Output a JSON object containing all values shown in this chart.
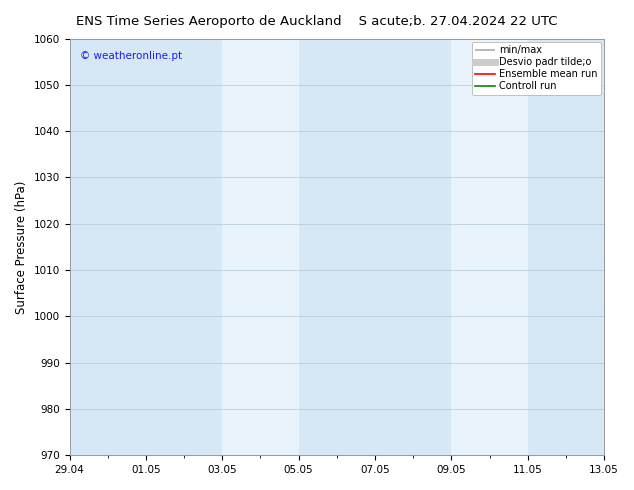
{
  "title_left": "ENS Time Series Aeroporto de Auckland",
  "title_right": "S acute;b. 27.04.2024 22 UTC",
  "ylabel": "Surface Pressure (hPa)",
  "ylim": [
    970,
    1060
  ],
  "yticks": [
    970,
    980,
    990,
    1000,
    1010,
    1020,
    1030,
    1040,
    1050,
    1060
  ],
  "xtick_labels": [
    "29.04",
    "01.05",
    "03.05",
    "05.05",
    "07.05",
    "09.05",
    "11.05",
    "13.05"
  ],
  "xtick_positions_days": [
    0,
    2,
    4,
    6,
    8,
    10,
    12,
    14
  ],
  "white_bands": [
    {
      "start_day": 4,
      "end_day": 6
    },
    {
      "start_day": 10,
      "end_day": 12
    }
  ],
  "plot_bg_color": "#d6e8f5",
  "white_band_color": "#e8f3fb",
  "background_color": "#ffffff",
  "legend_items": [
    {
      "label": "min/max",
      "color": "#aaaaaa",
      "lw": 1.2
    },
    {
      "label": "Desvio padr tilde;o",
      "color": "#cccccc",
      "lw": 5
    },
    {
      "label": "Ensemble mean run",
      "color": "#ff0000",
      "lw": 1.2
    },
    {
      "label": "Controll run",
      "color": "#008800",
      "lw": 1.2
    }
  ],
  "watermark": "© weatheronline.pt",
  "watermark_color": "#1a1aff",
  "title_fontsize": 9.5,
  "ylabel_fontsize": 8.5,
  "tick_fontsize": 7.5,
  "legend_fontsize": 7,
  "watermark_fontsize": 7.5
}
